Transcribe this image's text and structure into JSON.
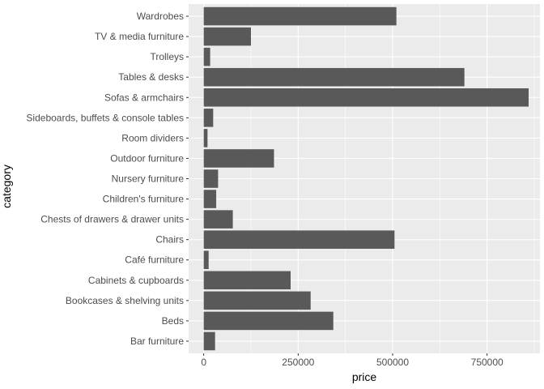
{
  "chart_data": {
    "type": "bar",
    "orientation": "horizontal",
    "xlabel": "price",
    "ylabel": "category",
    "categories": [
      "Bar furniture",
      "Beds",
      "Bookcases & shelving units",
      "Cabinets & cupboards",
      "Café furniture",
      "Chairs",
      "Chests of drawers & drawer units",
      "Children's furniture",
      "Nursery furniture",
      "Outdoor furniture",
      "Room dividers",
      "Sideboards, buffets & console tables",
      "Sofas & armchairs",
      "Tables & desks",
      "Trolleys",
      "TV & media furniture",
      "Wardrobes"
    ],
    "values": [
      30000,
      343000,
      283000,
      230000,
      13000,
      505000,
      77000,
      33000,
      38000,
      186000,
      10000,
      25000,
      860000,
      690000,
      17000,
      125000,
      510000
    ],
    "xlim": [
      -40000,
      890000
    ],
    "xticks": [
      0,
      250000,
      500000,
      750000
    ],
    "xtick_labels": [
      "0",
      "250000",
      "500000",
      "750000"
    ],
    "grid": true,
    "colors": {
      "bar": "#595959",
      "panel": "#ebebeb",
      "grid_major": "#ffffff",
      "text": "#4d4d4d"
    }
  }
}
